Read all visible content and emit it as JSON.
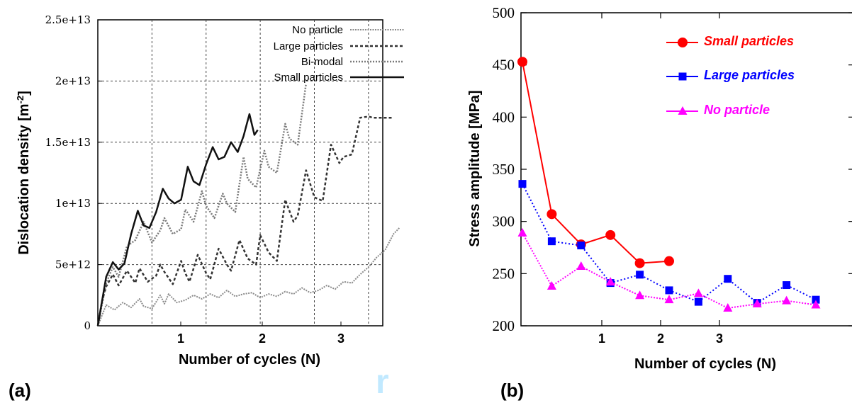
{
  "watermark": "r",
  "chart_data": [
    {
      "type": "line",
      "panel_label": "(a)",
      "xlabel": "Number of cycles (N)",
      "ylabel": "Dislocation density [m",
      "ylabel_sup": "-2",
      "ylabel_end": "]",
      "xlim": [
        0,
        4.2
      ],
      "ylim": [
        0,
        25000000000000
      ],
      "x_ticks": [
        {
          "v": 1,
          "label": "1"
        },
        {
          "v": 2,
          "label": "2"
        },
        {
          "v": 3,
          "label": "3"
        }
      ],
      "y_ticks": [
        {
          "v": 0,
          "label": "0"
        },
        {
          "v": 5000000000000,
          "label": "5e+12"
        },
        {
          "v": 10000000000000,
          "label": "1e+13"
        },
        {
          "v": 15000000000000,
          "label": "1.5e+13"
        },
        {
          "v": 20000000000000,
          "label": "2e+13"
        },
        {
          "v": 25000000000000,
          "label": "2.5e+13"
        }
      ],
      "grid": true,
      "legend_position": "top-right",
      "series": [
        {
          "name": "No particle",
          "color": "#8a8a8a",
          "dash": "2,1.5",
          "width": 2,
          "x": [
            0,
            0.1,
            0.2,
            0.3,
            0.4,
            0.5,
            0.55,
            0.65,
            0.75,
            0.8,
            0.85,
            0.95,
            1.05,
            1.15,
            1.25,
            1.35,
            1.45,
            1.55,
            1.65,
            1.75,
            1.85,
            1.95,
            2.05,
            2.15,
            2.25,
            2.35,
            2.45,
            2.55,
            2.65,
            2.75,
            2.85,
            2.95,
            3.05,
            3.15,
            3.25,
            3.35,
            3.45,
            3.55,
            3.62
          ],
          "y": [
            0,
            1700000000000.0,
            1300000000000.0,
            1900000000000.0,
            1500000000000.0,
            2200000000000.0,
            1600000000000.0,
            1400000000000.0,
            2500000000000.0,
            1800000000000.0,
            2600000000000.0,
            1900000000000.0,
            2100000000000.0,
            2500000000000.0,
            2200000000000.0,
            2600000000000.0,
            2300000000000.0,
            2900000000000.0,
            2400000000000.0,
            2600000000000.0,
            2700000000000.0,
            2300000000000.0,
            2600000000000.0,
            2400000000000.0,
            2800000000000.0,
            2600000000000.0,
            3100000000000.0,
            2700000000000.0,
            2900000000000.0,
            3300000000000.0,
            3000000000000.0,
            3600000000000.0,
            3500000000000.0,
            4200000000000.0,
            4800000000000.0,
            5600000000000.0,
            6200000000000.0,
            7500000000000.0,
            8000000000000.0
          ]
        },
        {
          "name": "Large particles",
          "color": "#333333",
          "dash": "4,3",
          "width": 2.5,
          "x": [
            0,
            0.05,
            0.1,
            0.18,
            0.25,
            0.35,
            0.45,
            0.5,
            0.6,
            0.7,
            0.75,
            0.8,
            0.9,
            1.0,
            1.05,
            1.1,
            1.2,
            1.3,
            1.35,
            1.45,
            1.55,
            1.6,
            1.7,
            1.8,
            1.9,
            1.95,
            2.05,
            2.15,
            2.25,
            2.35,
            2.4,
            2.5,
            2.6,
            2.7,
            2.8,
            2.9,
            2.95,
            3.05,
            3.15,
            3.25,
            3.3,
            3.4,
            3.45,
            3.5,
            3.55
          ],
          "y": [
            0,
            2000000000000.0,
            3200000000000.0,
            4200000000000.0,
            3300000000000.0,
            4500000000000.0,
            3500000000000.0,
            4700000000000.0,
            3600000000000.0,
            4100000000000.0,
            5000000000000.0,
            4400000000000.0,
            3400000000000.0,
            5300000000000.0,
            4300000000000.0,
            3600000000000.0,
            5800000000000.0,
            4300000000000.0,
            3800000000000.0,
            6300000000000.0,
            5000000000000.0,
            4500000000000.0,
            7000000000000.0,
            5500000000000.0,
            5000000000000.0,
            7400000000000.0,
            6000000000000.0,
            5300000000000.0,
            10300000000000.0,
            8500000000000.0,
            9000000000000.0,
            12700000000000.0,
            10500000000000.0,
            10200000000000.0,
            14800000000000.0,
            13300000000000.0,
            13800000000000.0,
            14000000000000.0,
            17000000000000.0,
            17100000000000.0,
            17000000000000.0,
            17000000000000.0,
            17000000000000.0,
            17000000000000.0,
            17000000000000.0
          ]
        },
        {
          "name": "Bi-modal",
          "color": "#7a7a7a",
          "dash": "2,2",
          "width": 2.5,
          "x": [
            0,
            0.1,
            0.18,
            0.25,
            0.35,
            0.45,
            0.55,
            0.65,
            0.75,
            0.8,
            0.9,
            1.0,
            1.05,
            1.15,
            1.25,
            1.3,
            1.4,
            1.5,
            1.55,
            1.65,
            1.75,
            1.8,
            1.9,
            2.0,
            2.05,
            2.15,
            2.25,
            2.3,
            2.4,
            2.5
          ],
          "y": [
            0,
            3500000000000.0,
            4800000000000.0,
            4000000000000.0,
            6500000000000.0,
            7000000000000.0,
            8500000000000.0,
            6800000000000.0,
            7800000000000.0,
            8800000000000.0,
            7500000000000.0,
            7900000000000.0,
            9500000000000.0,
            8500000000000.0,
            11000000000000.0,
            9800000000000.0,
            8800000000000.0,
            10800000000000.0,
            10000000000000.0,
            9300000000000.0,
            13800000000000.0,
            12000000000000.0,
            11300000000000.0,
            14300000000000.0,
            13000000000000.0,
            12500000000000.0,
            16500000000000.0,
            15300000000000.0,
            14800000000000.0,
            19800000000000.0
          ]
        },
        {
          "name": "Small particles",
          "color": "#111111",
          "dash": "",
          "width": 2.5,
          "x": [
            0,
            0.1,
            0.18,
            0.25,
            0.32,
            0.4,
            0.48,
            0.55,
            0.62,
            0.7,
            0.78,
            0.85,
            0.92,
            1.0,
            1.08,
            1.15,
            1.22,
            1.3,
            1.38,
            1.45,
            1.52,
            1.6,
            1.68,
            1.75,
            1.82,
            1.88,
            1.92
          ],
          "y": [
            0,
            4000000000000.0,
            5200000000000.0,
            4600000000000.0,
            5100000000000.0,
            7500000000000.0,
            9400000000000.0,
            8200000000000.0,
            8000000000000.0,
            9300000000000.0,
            11200000000000.0,
            10400000000000.0,
            10000000000000.0,
            10300000000000.0,
            13000000000000.0,
            11800000000000.0,
            11500000000000.0,
            13200000000000.0,
            14600000000000.0,
            13600000000000.0,
            13800000000000.0,
            15000000000000.0,
            14200000000000.0,
            15500000000000.0,
            17300000000000.0,
            15600000000000.0,
            16000000000000.0
          ]
        }
      ]
    },
    {
      "type": "line",
      "panel_label": "(b)",
      "xlabel": "Number of cycles (N)",
      "ylabel": "Stress amplitude [MPa]",
      "xlim": [
        0,
        4
      ],
      "ylim": [
        200,
        500
      ],
      "x_ticks": [
        {
          "v": 1,
          "label": "1"
        },
        {
          "v": 2,
          "label": "2"
        },
        {
          "v": 3,
          "label": "3"
        }
      ],
      "y_ticks": [
        {
          "v": 200,
          "label": "200"
        },
        {
          "v": 250,
          "label": "250"
        },
        {
          "v": 300,
          "label": "300"
        },
        {
          "v": 350,
          "label": "350"
        },
        {
          "v": 400,
          "label": "400"
        },
        {
          "v": 450,
          "label": "450"
        },
        {
          "v": 500,
          "label": "500"
        }
      ],
      "grid": false,
      "legend_position": "top-right",
      "series": [
        {
          "name": "Small particles",
          "color": "#ff0000",
          "marker": "circle",
          "dash": "",
          "x": [
            0,
            0.4,
            0.8,
            1.2,
            1.6,
            2.0
          ],
          "y": [
            453,
            307,
            278,
            287,
            260,
            262
          ]
        },
        {
          "name": "Large particles",
          "color": "#0000ff",
          "marker": "square",
          "dash": "2,3",
          "x": [
            0,
            0.4,
            0.8,
            1.2,
            1.6,
            2.0,
            2.4,
            2.8,
            3.2,
            3.6,
            4.0
          ],
          "y": [
            336,
            281,
            277,
            241,
            249,
            234,
            223,
            245,
            222,
            239,
            225
          ]
        },
        {
          "name": "No particle",
          "color": "#ff00ff",
          "marker": "triangle",
          "dash": "2,2",
          "x": [
            0,
            0.4,
            0.8,
            1.2,
            1.6,
            2.0,
            2.4,
            2.8,
            3.2,
            3.6,
            4.0
          ],
          "y": [
            289,
            238,
            257,
            242,
            229,
            225,
            231,
            217,
            221,
            224,
            220
          ]
        }
      ]
    }
  ]
}
